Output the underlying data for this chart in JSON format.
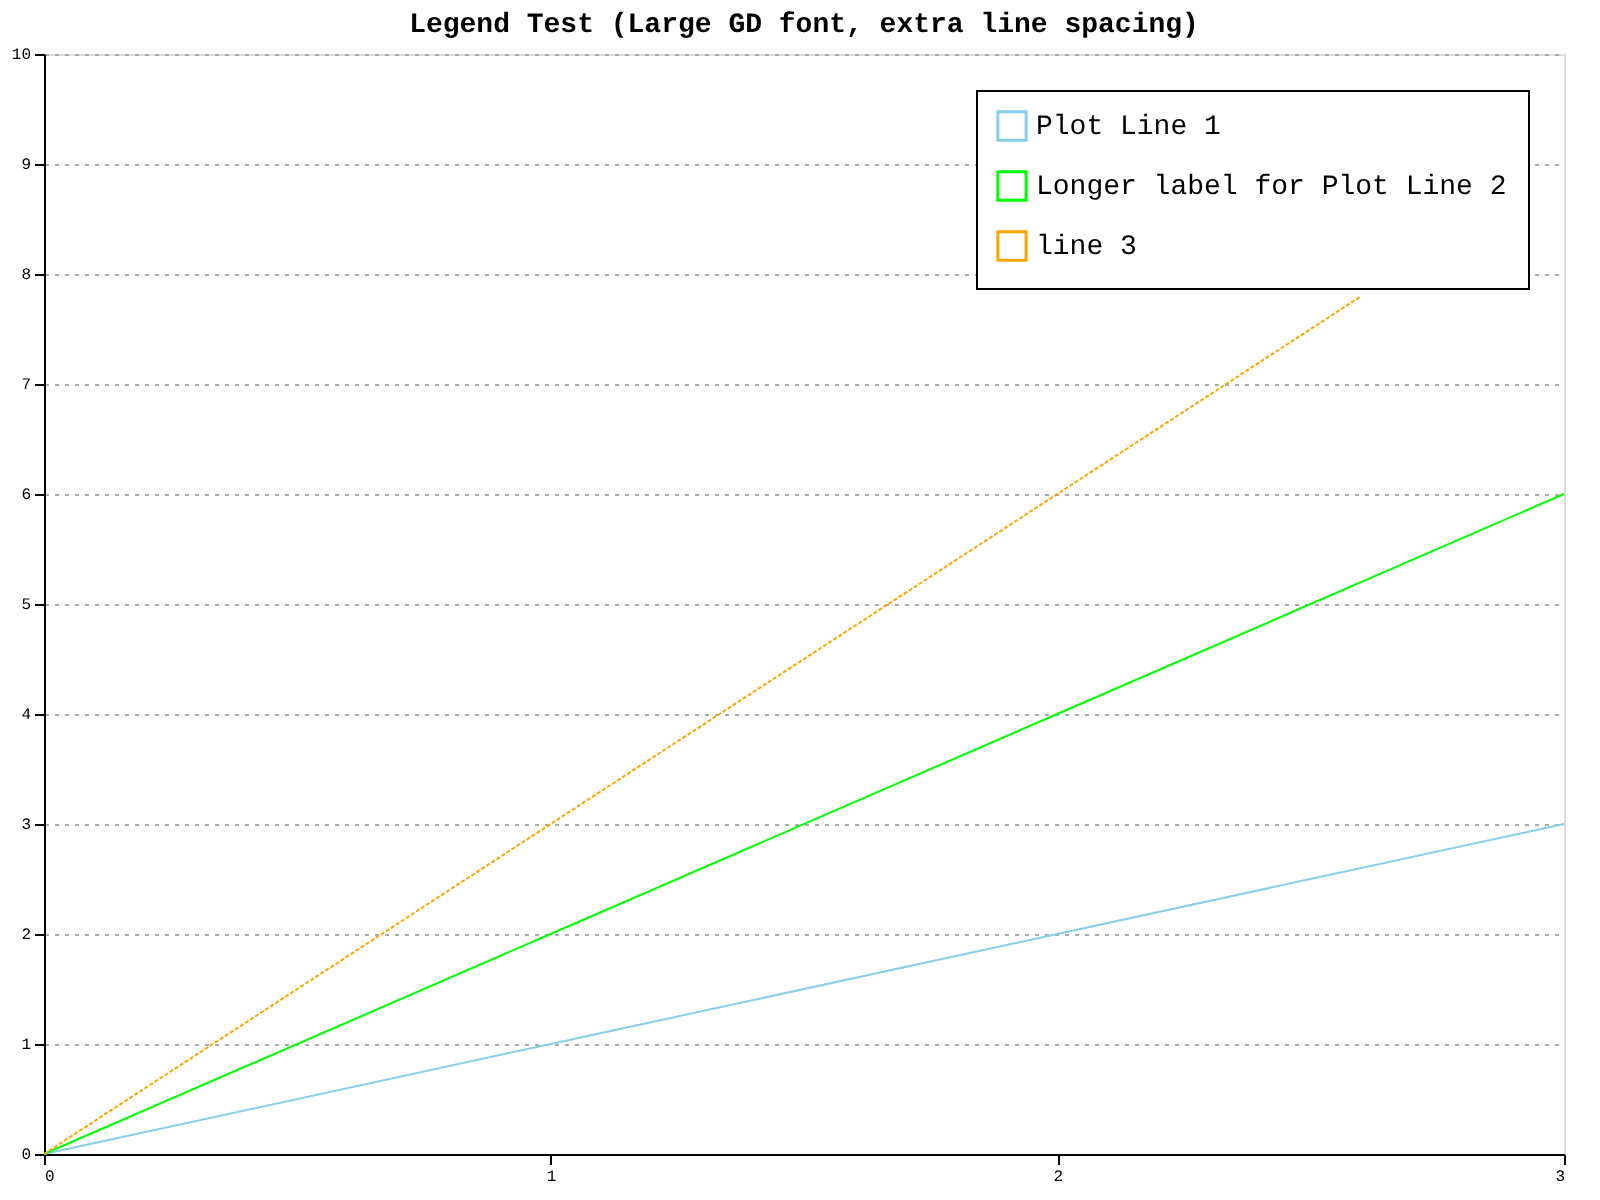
{
  "chart_data": {
    "type": "line",
    "title": "Legend Test (Large GD font, extra line spacing)",
    "x": [
      0,
      1,
      2,
      3
    ],
    "series": [
      {
        "name": "Plot Line 1",
        "color": "#87ceeb",
        "values": [
          0,
          1,
          2,
          3
        ],
        "line_style": "solid"
      },
      {
        "name": "Longer label for Plot Line 2",
        "color": "#00ff00",
        "values": [
          0,
          2,
          4,
          6
        ],
        "line_style": "solid"
      },
      {
        "name": "line 3",
        "color": "#ffa500",
        "x": [
          0,
          1,
          2,
          2.6
        ],
        "values": [
          0,
          3,
          6,
          7.8
        ],
        "line_style": "dotted"
      }
    ],
    "xlim": [
      0,
      3
    ],
    "xticks": [
      0,
      1,
      2,
      3
    ],
    "ylim": [
      0,
      10
    ],
    "yticks": [
      0,
      1,
      2,
      3,
      4,
      5,
      6,
      7,
      8,
      9,
      10
    ],
    "grid": "y",
    "legend": "top right",
    "marker": "none"
  }
}
